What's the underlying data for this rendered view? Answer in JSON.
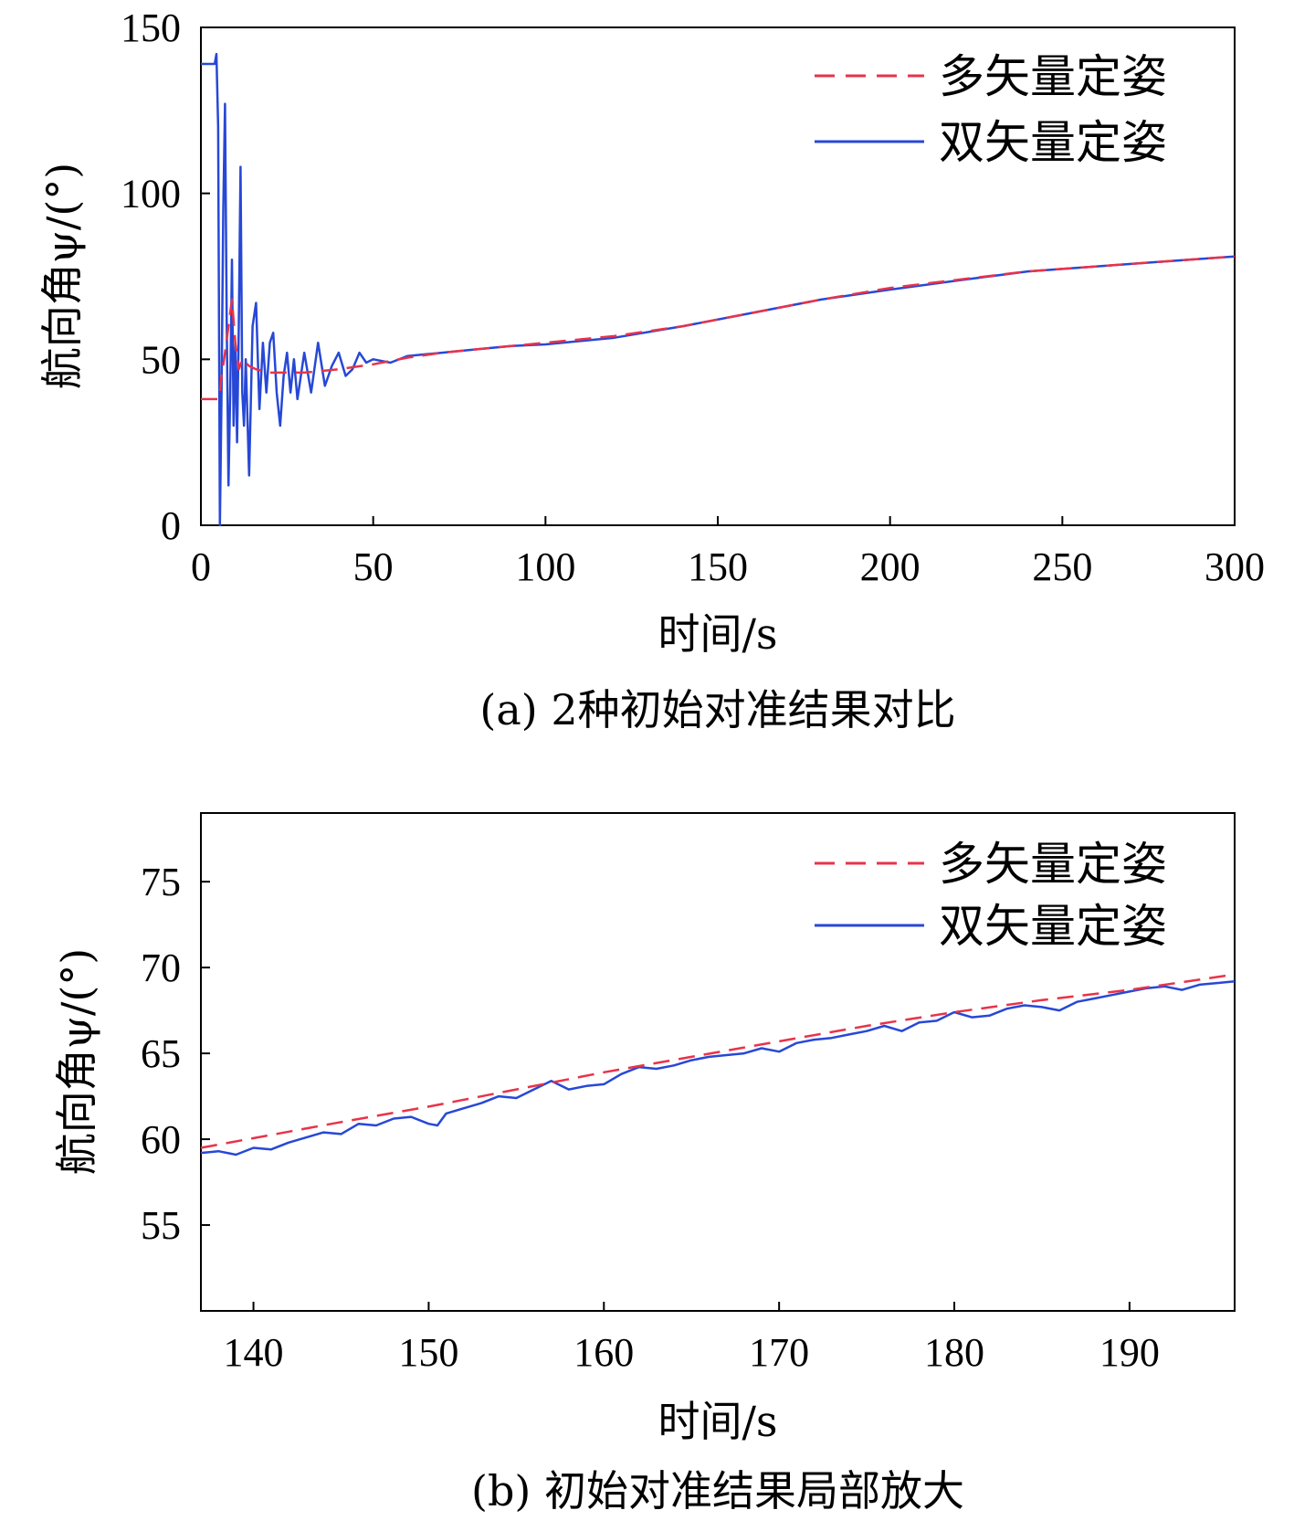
{
  "colors": {
    "multi": "#e8334a",
    "dual": "#2748d6",
    "axis": "#000000"
  },
  "chart_data": [
    {
      "id": "a",
      "type": "line",
      "caption": "(a) 2种初始对准结果对比",
      "xlabel": "时间/s",
      "ylabel": "航向角ψ/(°)",
      "xlim": [
        0,
        300
      ],
      "ylim": [
        0,
        150
      ],
      "xticks": [
        0,
        50,
        100,
        150,
        200,
        250,
        300
      ],
      "yticks": [
        0,
        50,
        100,
        150
      ],
      "legend": {
        "position": "top-right",
        "entries": [
          "多矢量定姿",
          "双矢量定姿"
        ]
      },
      "series": [
        {
          "name": "多矢量定姿",
          "style": "dashed",
          "x": [
            0,
            5,
            5.5,
            6,
            7,
            8,
            9,
            10,
            11,
            12,
            14,
            16,
            20,
            25,
            30,
            40,
            50,
            60,
            70,
            80,
            100,
            120,
            140,
            160,
            180,
            200,
            220,
            240,
            260,
            280,
            300
          ],
          "y": [
            38,
            38,
            40,
            45,
            52,
            60,
            68,
            55,
            47,
            50,
            48,
            47,
            46,
            46,
            46,
            47,
            48.5,
            50.5,
            52,
            53,
            55,
            57,
            60,
            64,
            68,
            71.5,
            74,
            76.5,
            78,
            79.5,
            81
          ]
        },
        {
          "name": "双矢量定姿",
          "style": "solid",
          "x": [
            0,
            4,
            4.5,
            5,
            5.5,
            6,
            6.5,
            7,
            7.5,
            8,
            8.5,
            9,
            9.5,
            10,
            10.5,
            11,
            11.5,
            12,
            12.5,
            13,
            14,
            15,
            16,
            17,
            18,
            19,
            20,
            21,
            22,
            23,
            24,
            25,
            26,
            27,
            28,
            30,
            32,
            34,
            36,
            38,
            40,
            42,
            44,
            46,
            48,
            50,
            55,
            60,
            65,
            70,
            80,
            90,
            100,
            120,
            140,
            160,
            180,
            200,
            220,
            240,
            260,
            280,
            300
          ],
          "y": [
            139,
            139,
            142,
            120,
            0,
            40,
            95,
            127,
            60,
            12,
            40,
            80,
            30,
            55,
            25,
            60,
            108,
            40,
            30,
            50,
            15,
            60,
            67,
            35,
            55,
            40,
            55,
            58,
            40,
            30,
            45,
            52,
            40,
            50,
            38,
            52,
            40,
            55,
            42,
            48,
            52,
            45,
            47,
            52,
            49,
            50,
            49,
            51,
            51.5,
            52,
            53,
            54,
            54.5,
            56.5,
            60,
            64,
            68,
            71,
            73.8,
            76.5,
            78,
            79.5,
            81
          ]
        }
      ]
    },
    {
      "id": "b",
      "type": "line",
      "caption": "(b) 初始对准结果局部放大",
      "xlabel": "时间/s",
      "ylabel": "航向角ψ/(°)",
      "xlim": [
        137,
        196
      ],
      "ylim": [
        50,
        79
      ],
      "xticks": [
        140,
        150,
        160,
        170,
        180,
        190
      ],
      "yticks": [
        55,
        60,
        65,
        70,
        75
      ],
      "legend": {
        "position": "top-right",
        "entries": [
          "多矢量定姿",
          "双矢量定姿"
        ]
      },
      "series": [
        {
          "name": "多矢量定姿",
          "style": "dashed",
          "x": [
            137,
            145,
            150,
            155,
            160,
            165,
            170,
            175,
            180,
            185,
            190,
            196
          ],
          "y": [
            59.5,
            61.0,
            61.9,
            62.9,
            63.9,
            64.8,
            65.7,
            66.6,
            67.4,
            68.1,
            68.7,
            69.6
          ]
        },
        {
          "name": "双矢量定姿",
          "style": "solid",
          "x": [
            137,
            138,
            139,
            140,
            141,
            142,
            143,
            144,
            145,
            146,
            147,
            148,
            149,
            150,
            150.5,
            151,
            152,
            153,
            154,
            155,
            156,
            157,
            158,
            159,
            160,
            161,
            162,
            163,
            164,
            165,
            166,
            167,
            168,
            169,
            170,
            171,
            172,
            173,
            174,
            175,
            176,
            177,
            178,
            179,
            180,
            181,
            182,
            183,
            184,
            185,
            186,
            187,
            188,
            189,
            190,
            191,
            192,
            193,
            194,
            195,
            196
          ],
          "y": [
            59.2,
            59.3,
            59.1,
            59.5,
            59.4,
            59.8,
            60.1,
            60.4,
            60.3,
            60.9,
            60.8,
            61.2,
            61.3,
            60.9,
            60.8,
            61.5,
            61.8,
            62.1,
            62.5,
            62.4,
            62.9,
            63.4,
            62.9,
            63.1,
            63.2,
            63.8,
            64.2,
            64.1,
            64.3,
            64.6,
            64.8,
            64.9,
            65.0,
            65.3,
            65.1,
            65.6,
            65.8,
            65.9,
            66.1,
            66.3,
            66.6,
            66.3,
            66.8,
            66.9,
            67.4,
            67.1,
            67.2,
            67.6,
            67.8,
            67.7,
            67.5,
            68.0,
            68.2,
            68.4,
            68.6,
            68.8,
            68.9,
            68.7,
            69.0,
            69.1,
            69.2
          ]
        }
      ]
    }
  ]
}
